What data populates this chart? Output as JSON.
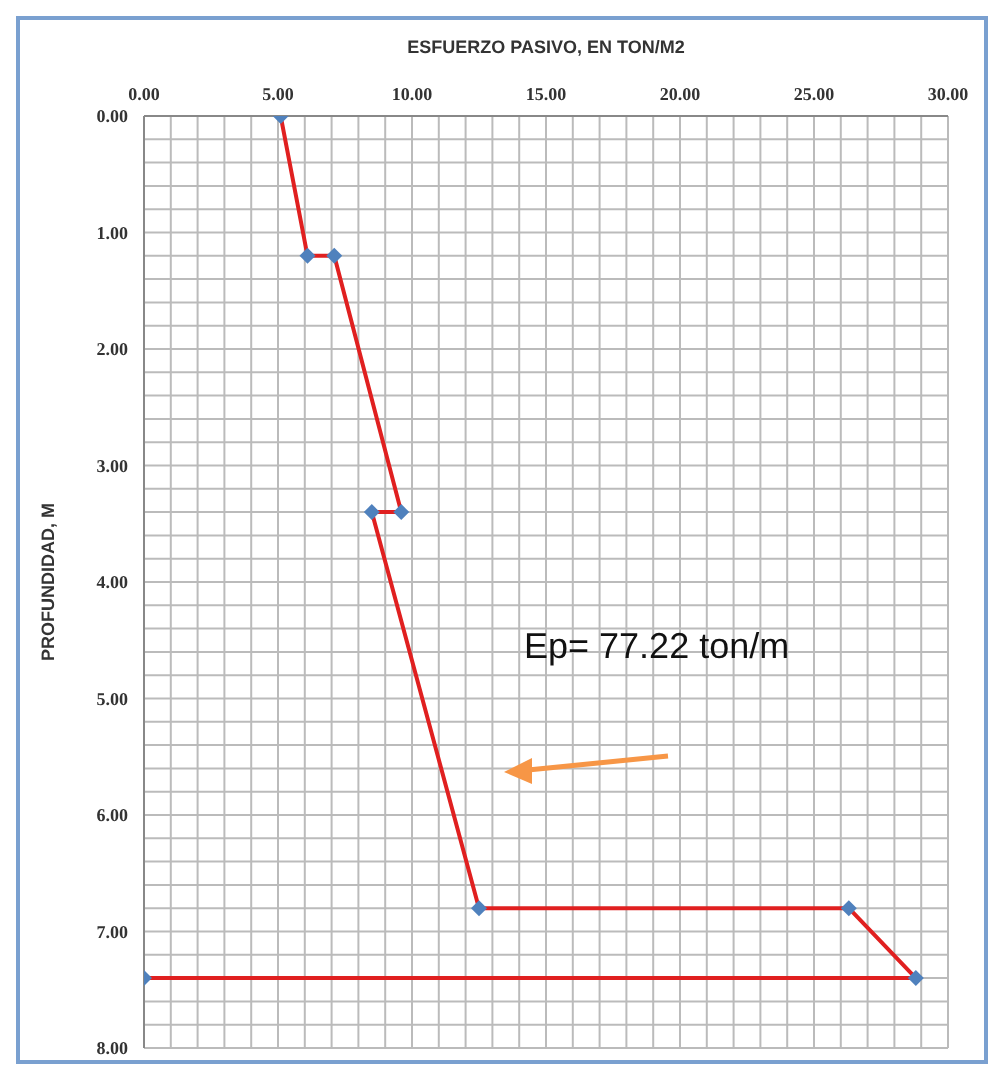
{
  "chart_data": {
    "type": "line",
    "xlabel": "ESFUERZO PASIVO, EN TON/M2",
    "ylabel": "PROFUNDIDAD, M",
    "x": [
      5.1,
      6.1,
      7.1,
      9.6,
      8.5,
      12.5,
      26.3,
      28.8,
      0
    ],
    "series": [
      {
        "color": "#e02020",
        "values": [
          0,
          1.2,
          1.2,
          3.4,
          3.4,
          6.8,
          6.8,
          7.4,
          7.4
        ]
      }
    ],
    "marker": "diamond",
    "line_style": "solid",
    "xlim": [
      0,
      30
    ],
    "xticks": [
      {
        "value": 0,
        "label": "0.00"
      },
      {
        "value": 1,
        "label": null
      },
      {
        "value": 2,
        "label": null
      },
      {
        "value": 3,
        "label": null
      },
      {
        "value": 4,
        "label": null
      },
      {
        "value": 5,
        "label": "5.00"
      },
      {
        "value": 6,
        "label": null
      },
      {
        "value": 7,
        "label": null
      },
      {
        "value": 8,
        "label": null
      },
      {
        "value": 9,
        "label": null
      },
      {
        "value": 10,
        "label": "10.00"
      },
      {
        "value": 11,
        "label": null
      },
      {
        "value": 12,
        "label": null
      },
      {
        "value": 13,
        "label": null
      },
      {
        "value": 14,
        "label": null
      },
      {
        "value": 15,
        "label": "15.00"
      },
      {
        "value": 16,
        "label": null
      },
      {
        "value": 17,
        "label": null
      },
      {
        "value": 18,
        "label": null
      },
      {
        "value": 19,
        "label": null
      },
      {
        "value": 20,
        "label": "20.00"
      },
      {
        "value": 21,
        "label": null
      },
      {
        "value": 22,
        "label": null
      },
      {
        "value": 23,
        "label": null
      },
      {
        "value": 24,
        "label": null
      },
      {
        "value": 25,
        "label": "25.00"
      },
      {
        "value": 26,
        "label": null
      },
      {
        "value": 27,
        "label": null
      },
      {
        "value": 28,
        "label": null
      },
      {
        "value": 29,
        "label": null
      },
      {
        "value": 30,
        "label": "30.00"
      }
    ],
    "ylim": [
      8,
      0
    ],
    "yticks": [
      {
        "value": 0,
        "label": "0.00"
      },
      {
        "value": 0.2,
        "label": null
      },
      {
        "value": 0.4,
        "label": null
      },
      {
        "value": 0.6,
        "label": null
      },
      {
        "value": 0.8,
        "label": null
      },
      {
        "value": 1,
        "label": "1.00"
      },
      {
        "value": 1.2,
        "label": null
      },
      {
        "value": 1.4,
        "label": null
      },
      {
        "value": 1.6,
        "label": null
      },
      {
        "value": 1.8,
        "label": null
      },
      {
        "value": 2,
        "label": "2.00"
      },
      {
        "value": 2.2,
        "label": null
      },
      {
        "value": 2.4,
        "label": null
      },
      {
        "value": 2.6,
        "label": null
      },
      {
        "value": 2.8,
        "label": null
      },
      {
        "value": 3,
        "label": "3.00"
      },
      {
        "value": 3.2,
        "label": null
      },
      {
        "value": 3.4,
        "label": null
      },
      {
        "value": 3.6,
        "label": null
      },
      {
        "value": 3.8,
        "label": null
      },
      {
        "value": 4,
        "label": "4.00"
      },
      {
        "value": 4.2,
        "label": null
      },
      {
        "value": 4.4,
        "label": null
      },
      {
        "value": 4.6,
        "label": null
      },
      {
        "value": 4.8,
        "label": null
      },
      {
        "value": 5,
        "label": "5.00"
      },
      {
        "value": 5.2,
        "label": null
      },
      {
        "value": 5.4,
        "label": null
      },
      {
        "value": 5.6,
        "label": null
      },
      {
        "value": 5.8,
        "label": null
      },
      {
        "value": 6,
        "label": "6.00"
      },
      {
        "value": 6.2,
        "label": null
      },
      {
        "value": 6.4,
        "label": null
      },
      {
        "value": 6.6,
        "label": null
      },
      {
        "value": 6.8,
        "label": null
      },
      {
        "value": 7,
        "label": "7.00"
      },
      {
        "value": 7.2,
        "label": null
      },
      {
        "value": 7.4,
        "label": null
      },
      {
        "value": 7.6,
        "label": null
      },
      {
        "value": 7.8,
        "label": null
      },
      {
        "value": 8,
        "label": "8.00"
      }
    ],
    "grid": true,
    "legend": false,
    "annotations": [
      "Ep= 77.22 ton/m"
    ]
  }
}
